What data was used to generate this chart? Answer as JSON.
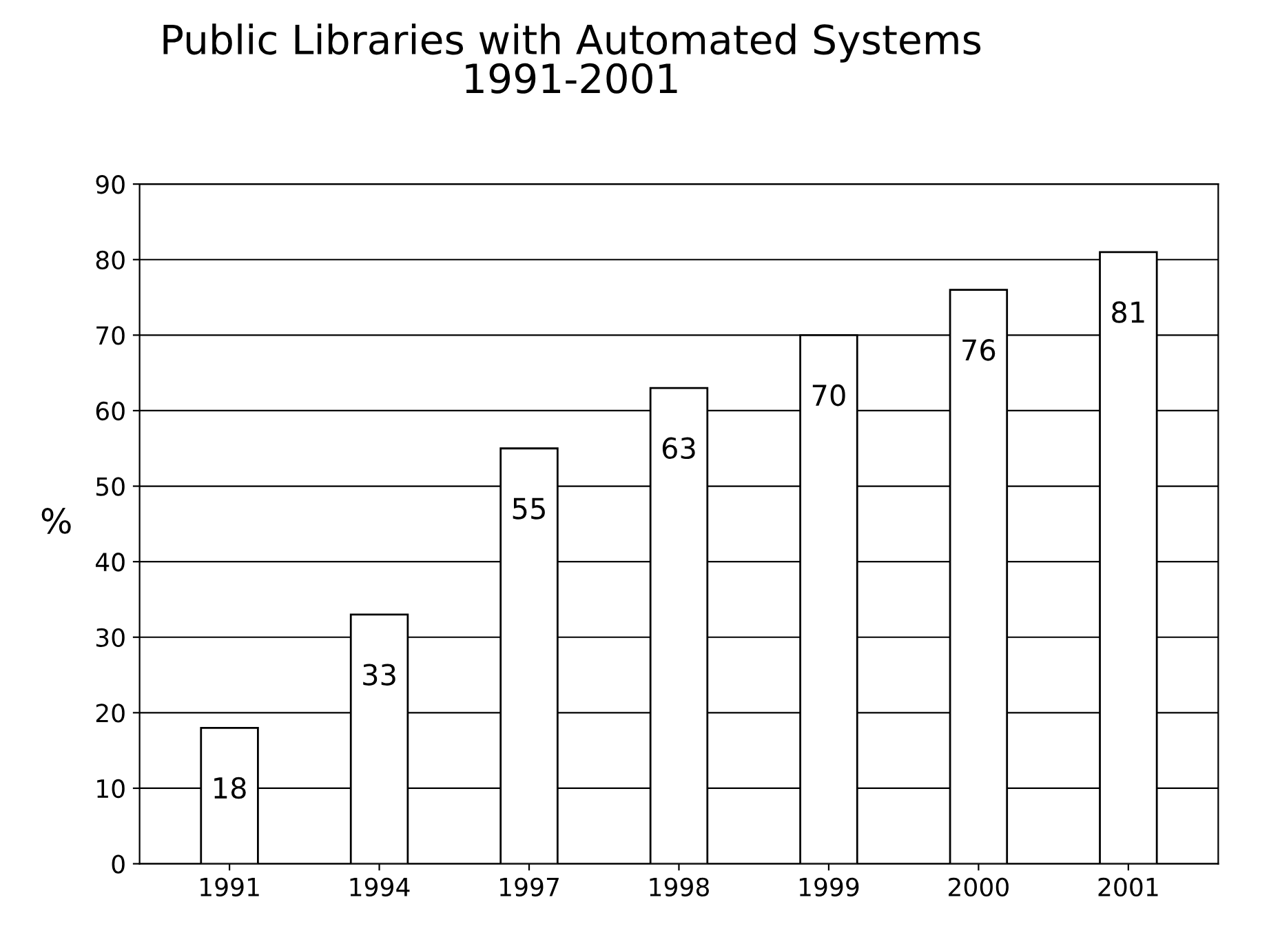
{
  "chart_data": {
    "type": "bar",
    "title": "Public Libraries with Automated Systems\n1991-2001",
    "ylabel": "%",
    "categories": [
      "1991",
      "1994",
      "1997",
      "1998",
      "1999",
      "2000",
      "2001"
    ],
    "values": [
      18,
      33,
      55,
      63,
      70,
      76,
      81
    ],
    "color": "#ffffff",
    "ylim": [
      0,
      90
    ],
    "yticks": [
      0,
      10,
      20,
      30,
      40,
      50,
      60,
      70,
      80,
      90
    ],
    "grid": "y",
    "data_labels": true
  }
}
